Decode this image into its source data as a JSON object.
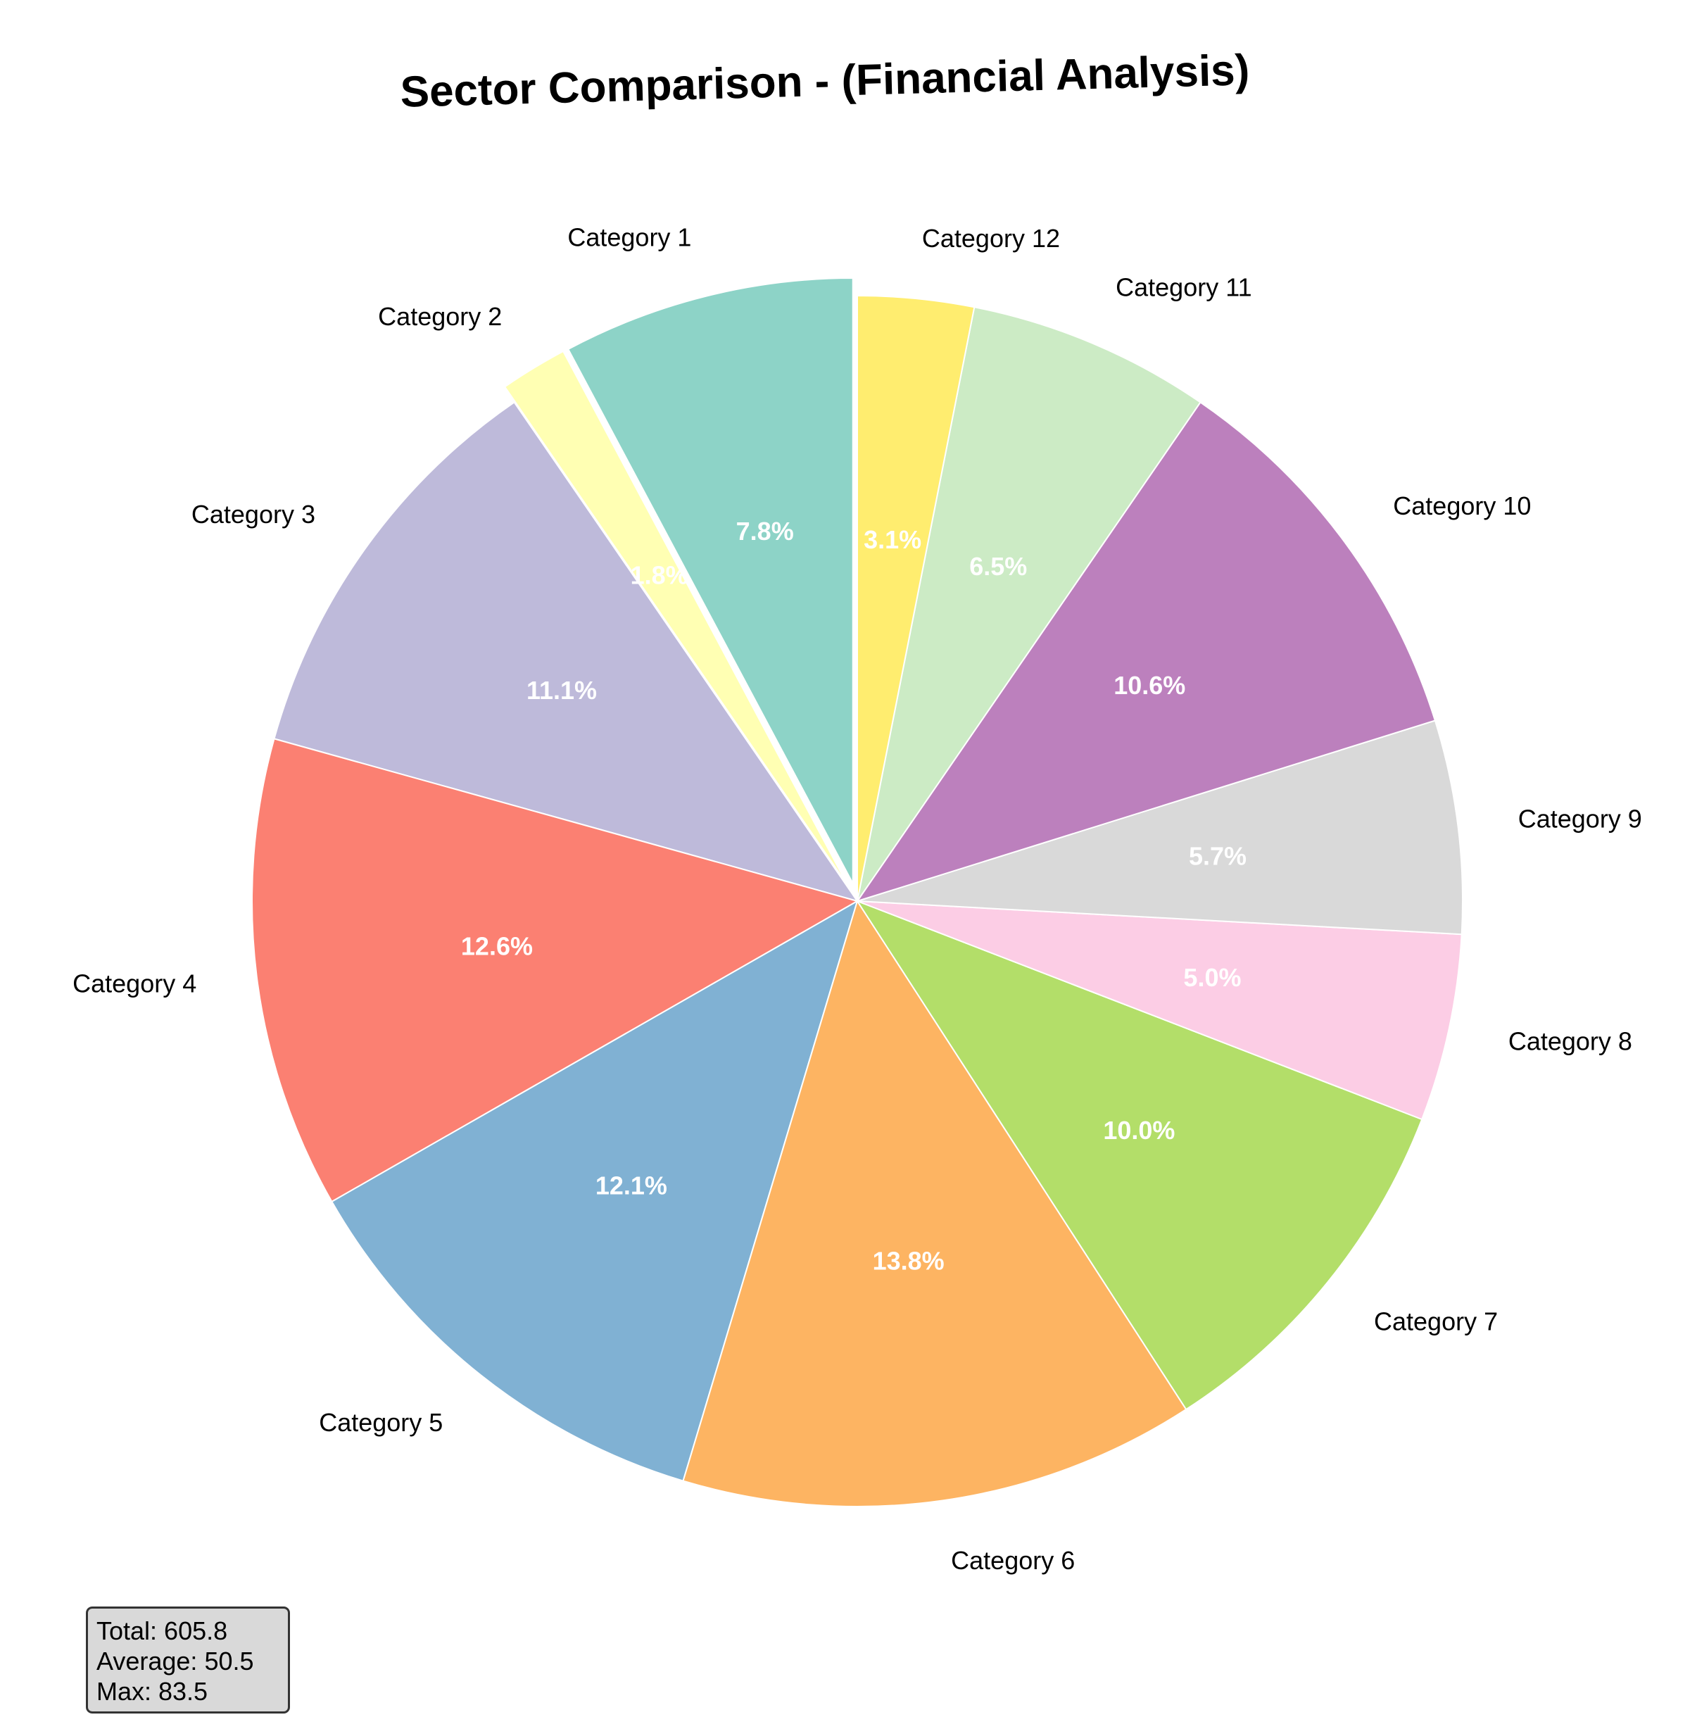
{
  "chart_data": {
    "type": "pie",
    "title": "Sector Comparison - (Financial Analysis)",
    "categories": [
      "Category 1",
      "Category 2",
      "Category 3",
      "Category 4",
      "Category 5",
      "Category 6",
      "Category 7",
      "Category 8",
      "Category 9",
      "Category 10",
      "Category 11",
      "Category 12"
    ],
    "percentages": [
      7.8,
      1.8,
      11.1,
      12.6,
      12.1,
      13.8,
      10.0,
      5.0,
      5.7,
      10.6,
      6.5,
      3.1
    ],
    "percent_labels": [
      "7.8%",
      "1.8%",
      "11.1%",
      "12.6%",
      "12.1%",
      "13.8%",
      "10.0%",
      "5.0%",
      "5.7%",
      "10.6%",
      "6.5%",
      "3.1%"
    ],
    "colors": [
      "#8dd3c7",
      "#ffffb3",
      "#bebada",
      "#fb8072",
      "#80b1d3",
      "#fdb462",
      "#b3de69",
      "#fccde5",
      "#d9d9d9",
      "#bc80bd",
      "#ccebc5",
      "#ffed6f"
    ],
    "exploded": [
      "Category 1",
      "Category 2"
    ],
    "start_angle_deg": 90,
    "direction": "counterclockwise"
  },
  "stats": {
    "total": "Total: 605.8",
    "average": "Average: 50.5",
    "max": "Max: 83.5"
  }
}
